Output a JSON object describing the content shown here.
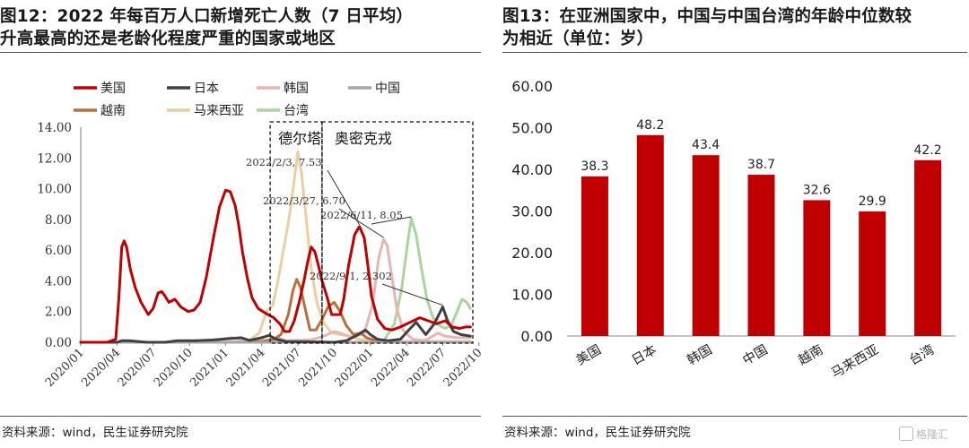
{
  "left": {
    "title_line1": "图12：2022 年每百万人口新增死亡人数（7 日平均）",
    "title_line2": "升高最高的还是老龄化程度严重的国家或地区",
    "source": "资料来源：wind，民生证券研究院"
  },
  "right": {
    "title_line1": "图13：在亚洲国家中，中国与中国台湾的年龄中位数较",
    "title_line2": "为相近（单位：岁）",
    "source": "资料来源：wind，民生证券研究院"
  },
  "watermark": "格隆汇",
  "chart_data": [
    {
      "type": "line",
      "ylim": [
        0,
        14
      ],
      "y_ticks": [
        "0.00",
        "2.00",
        "4.00",
        "6.00",
        "8.00",
        "10.00",
        "12.00",
        "14.00"
      ],
      "x_ticks": [
        "2020/01",
        "2020/04",
        "2020/07",
        "2020/10",
        "2021/01",
        "2021/04",
        "2021/07",
        "2021/10",
        "2022/01",
        "2022/04",
        "2022/07",
        "2022/10"
      ],
      "legend_position": "top",
      "series": [
        {
          "name": "美国",
          "color": "#c00000",
          "points": [
            [
              0,
              0
            ],
            [
              2.2,
              0
            ],
            [
              2.9,
              0.2
            ],
            [
              3.15,
              2.8
            ],
            [
              3.4,
              6.2
            ],
            [
              3.6,
              6.6
            ],
            [
              3.8,
              6.2
            ],
            [
              4.1,
              4.8
            ],
            [
              4.5,
              3.6
            ],
            [
              5.0,
              2.6
            ],
            [
              5.6,
              1.8
            ],
            [
              6.0,
              2.2
            ],
            [
              6.4,
              3.2
            ],
            [
              6.7,
              3.3
            ],
            [
              7.0,
              3.0
            ],
            [
              7.3,
              2.6
            ],
            [
              7.8,
              2.8
            ],
            [
              8.3,
              2.3
            ],
            [
              8.9,
              2.0
            ],
            [
              9.4,
              2.1
            ],
            [
              9.9,
              2.6
            ],
            [
              10.4,
              4.2
            ],
            [
              11.0,
              6.8
            ],
            [
              11.5,
              8.8
            ],
            [
              12.0,
              9.9
            ],
            [
              12.4,
              9.8
            ],
            [
              12.8,
              8.9
            ],
            [
              13.1,
              7.6
            ],
            [
              13.4,
              5.9
            ],
            [
              13.8,
              4.2
            ],
            [
              14.2,
              2.9
            ],
            [
              14.7,
              2.2
            ],
            [
              15.3,
              1.9
            ],
            [
              16.0,
              1.6
            ],
            [
              16.5,
              1.2
            ],
            [
              16.9,
              0.7
            ],
            [
              17.3,
              0.7
            ],
            [
              17.7,
              1.4
            ],
            [
              18.1,
              2.6
            ],
            [
              18.5,
              4.0
            ],
            [
              18.8,
              5.2
            ],
            [
              19.1,
              6.2
            ],
            [
              19.4,
              5.9
            ],
            [
              19.7,
              5.0
            ],
            [
              20.0,
              4.0
            ],
            [
              20.4,
              3.0
            ],
            [
              20.8,
              1.8
            ],
            [
              21.2,
              1.8
            ],
            [
              21.5,
              1.8
            ],
            [
              21.8,
              2.8
            ],
            [
              22.2,
              5.0
            ],
            [
              22.7,
              7.0
            ],
            [
              23.1,
              7.53
            ],
            [
              23.5,
              6.8
            ],
            [
              23.8,
              5.0
            ],
            [
              24.1,
              3.0
            ],
            [
              24.6,
              1.5
            ],
            [
              25.2,
              0.9
            ],
            [
              25.8,
              0.8
            ],
            [
              26.5,
              1.0
            ],
            [
              27.3,
              1.3
            ],
            [
              28.1,
              1.6
            ],
            [
              28.8,
              1.4
            ],
            [
              29.5,
              1.2
            ],
            [
              30.2,
              1.4
            ],
            [
              30.8,
              1.0
            ],
            [
              31.4,
              0.9
            ],
            [
              31.9,
              1.0
            ],
            [
              32.3,
              1.0
            ]
          ]
        },
        {
          "name": "日本",
          "color": "#404040",
          "points": [
            [
              0,
              0
            ],
            [
              3.0,
              0
            ],
            [
              3.4,
              0.1
            ],
            [
              4.0,
              0.1
            ],
            [
              5.5,
              0
            ],
            [
              7.0,
              0
            ],
            [
              8.0,
              0.1
            ],
            [
              9.5,
              0.1
            ],
            [
              11.0,
              0.15
            ],
            [
              12.5,
              0.25
            ],
            [
              13.3,
              0.3
            ],
            [
              14.0,
              0.12
            ],
            [
              15.0,
              0.3
            ],
            [
              15.6,
              0.45
            ],
            [
              16.2,
              0.2
            ],
            [
              17.0,
              0.05
            ],
            [
              19.0,
              0.03
            ],
            [
              21.0,
              0
            ],
            [
              22.0,
              0.1
            ],
            [
              23.0,
              0.5
            ],
            [
              23.6,
              0.8
            ],
            [
              24.0,
              0.5
            ],
            [
              24.6,
              0.2
            ],
            [
              25.5,
              0.1
            ],
            [
              26.5,
              0.2
            ],
            [
              27.2,
              0.8
            ],
            [
              27.8,
              1.3
            ],
            [
              28.2,
              0.9
            ],
            [
              28.6,
              0.5
            ],
            [
              29.3,
              1.2
            ],
            [
              30.0,
              2.302
            ],
            [
              30.4,
              1.4
            ],
            [
              30.9,
              0.7
            ],
            [
              31.5,
              0.5
            ],
            [
              32.3,
              0.4
            ]
          ]
        },
        {
          "name": "韩国",
          "color": "#e8b4b4",
          "points": [
            [
              0,
              0
            ],
            [
              9.0,
              0
            ],
            [
              10.0,
              0.05
            ],
            [
              11.5,
              0.2
            ],
            [
              12.5,
              0.3
            ],
            [
              13.3,
              0.2
            ],
            [
              15.0,
              0.1
            ],
            [
              17.0,
              0.1
            ],
            [
              19.0,
              0.15
            ],
            [
              20.0,
              0.35
            ],
            [
              21.0,
              0.7
            ],
            [
              21.5,
              0.6
            ],
            [
              22.5,
              0.3
            ],
            [
              23.5,
              0.6
            ],
            [
              24.2,
              2.5
            ],
            [
              24.7,
              5.5
            ],
            [
              25.1,
              6.7
            ],
            [
              25.4,
              6.3
            ],
            [
              25.8,
              4.2
            ],
            [
              26.2,
              2.2
            ],
            [
              26.7,
              0.8
            ],
            [
              27.5,
              0.2
            ],
            [
              28.5,
              0.1
            ],
            [
              29.2,
              0.4
            ],
            [
              29.6,
              0.6
            ],
            [
              30.2,
              0.4
            ],
            [
              31.2,
              0.3
            ],
            [
              32.3,
              0.3
            ]
          ]
        },
        {
          "name": "中国",
          "color": "#a6a6a6",
          "points": [
            [
              0,
              0
            ],
            [
              2.0,
              0
            ],
            [
              2.6,
              0.05
            ],
            [
              3.0,
              0
            ],
            [
              32.3,
              0
            ]
          ]
        },
        {
          "name": "越南",
          "color": "#b9703c",
          "points": [
            [
              0,
              0
            ],
            [
              13.0,
              0
            ],
            [
              14.0,
              0.02
            ],
            [
              15.0,
              0.05
            ],
            [
              16.0,
              0.2
            ],
            [
              16.6,
              0.5
            ],
            [
              17.2,
              1.8
            ],
            [
              17.6,
              3.4
            ],
            [
              17.9,
              4.1
            ],
            [
              18.2,
              3.6
            ],
            [
              18.6,
              2.2
            ],
            [
              19.0,
              0.8
            ],
            [
              19.5,
              0.8
            ],
            [
              20.0,
              1.5
            ],
            [
              20.5,
              2.3
            ],
            [
              21.0,
              2.6
            ],
            [
              21.5,
              2.0
            ],
            [
              22.0,
              1.1
            ],
            [
              22.6,
              0.5
            ],
            [
              23.2,
              0.6
            ],
            [
              23.7,
              0.3
            ],
            [
              24.5,
              0.1
            ],
            [
              25.5,
              0
            ],
            [
              32.3,
              0
            ]
          ]
        },
        {
          "name": "马来西亚",
          "color": "#ebcfa2",
          "points": [
            [
              0,
              0
            ],
            [
              12.0,
              0
            ],
            [
              13.0,
              0.05
            ],
            [
              14.0,
              0.15
            ],
            [
              14.8,
              0.6
            ],
            [
              15.4,
              2.0
            ],
            [
              15.9,
              2.4
            ],
            [
              16.3,
              3.8
            ],
            [
              16.8,
              6.0
            ],
            [
              17.3,
              8.2
            ],
            [
              17.7,
              10.6
            ],
            [
              18.0,
              12.4
            ],
            [
              18.3,
              11.0
            ],
            [
              18.7,
              8.0
            ],
            [
              19.1,
              4.8
            ],
            [
              19.6,
              2.5
            ],
            [
              20.2,
              1.2
            ],
            [
              20.8,
              0.6
            ],
            [
              21.5,
              0.5
            ],
            [
              22.3,
              0.4
            ],
            [
              23.0,
              0.2
            ],
            [
              24.0,
              0.1
            ],
            [
              25.0,
              0.05
            ],
            [
              32.3,
              0.05
            ]
          ]
        },
        {
          "name": "台湾",
          "color": "#a8d69a",
          "points": [
            [
              0,
              0
            ],
            [
              15.8,
              0
            ],
            [
              16.0,
              0.08
            ],
            [
              16.3,
              0.3
            ],
            [
              16.7,
              0.2
            ],
            [
              17.2,
              0.05
            ],
            [
              19.0,
              0
            ],
            [
              24.5,
              0
            ],
            [
              25.2,
              0.2
            ],
            [
              26.0,
              1.2
            ],
            [
              26.6,
              3.5
            ],
            [
              27.1,
              6.5
            ],
            [
              27.4,
              8.05
            ],
            [
              27.8,
              7.0
            ],
            [
              28.2,
              5.0
            ],
            [
              28.7,
              2.8
            ],
            [
              29.2,
              1.6
            ],
            [
              29.7,
              1.1
            ],
            [
              30.2,
              0.9
            ],
            [
              30.7,
              1.1
            ],
            [
              31.2,
              2.0
            ],
            [
              31.6,
              2.8
            ],
            [
              32.0,
              2.6
            ],
            [
              32.3,
              2.2
            ]
          ]
        }
      ],
      "regions": [
        {
          "label": "德尔塔",
          "x_start": 15.7,
          "x_end": 20.0
        },
        {
          "label": "奥密克戎",
          "x_start": 20.0,
          "x_end": 32.5
        }
      ],
      "annotations": [
        {
          "text": "2022/2/3, 7.53",
          "x": 23.1,
          "y": 7.53
        },
        {
          "text": "2022/3/27, 6.70",
          "x": 25.1,
          "y": 6.7
        },
        {
          "text": "2022/6/11, 8.05",
          "x": 27.4,
          "y": 8.05
        },
        {
          "text": "2022/9/1, 2.302",
          "x": 30.0,
          "y": 2.302
        }
      ]
    },
    {
      "type": "bar",
      "categories": [
        "美国",
        "日本",
        "韩国",
        "中国",
        "越南",
        "马来西亚",
        "台湾"
      ],
      "values": [
        38.3,
        48.2,
        43.4,
        38.7,
        32.6,
        29.9,
        42.2
      ],
      "value_labels": [
        "38.3",
        "48.2",
        "43.4",
        "38.7",
        "32.6",
        "29.9",
        "42.2"
      ],
      "ylim": [
        0,
        60
      ],
      "y_ticks": [
        "0.00",
        "10.00",
        "20.00",
        "30.00",
        "40.00",
        "50.00",
        "60.00"
      ],
      "bar_color": "#c00000"
    }
  ]
}
